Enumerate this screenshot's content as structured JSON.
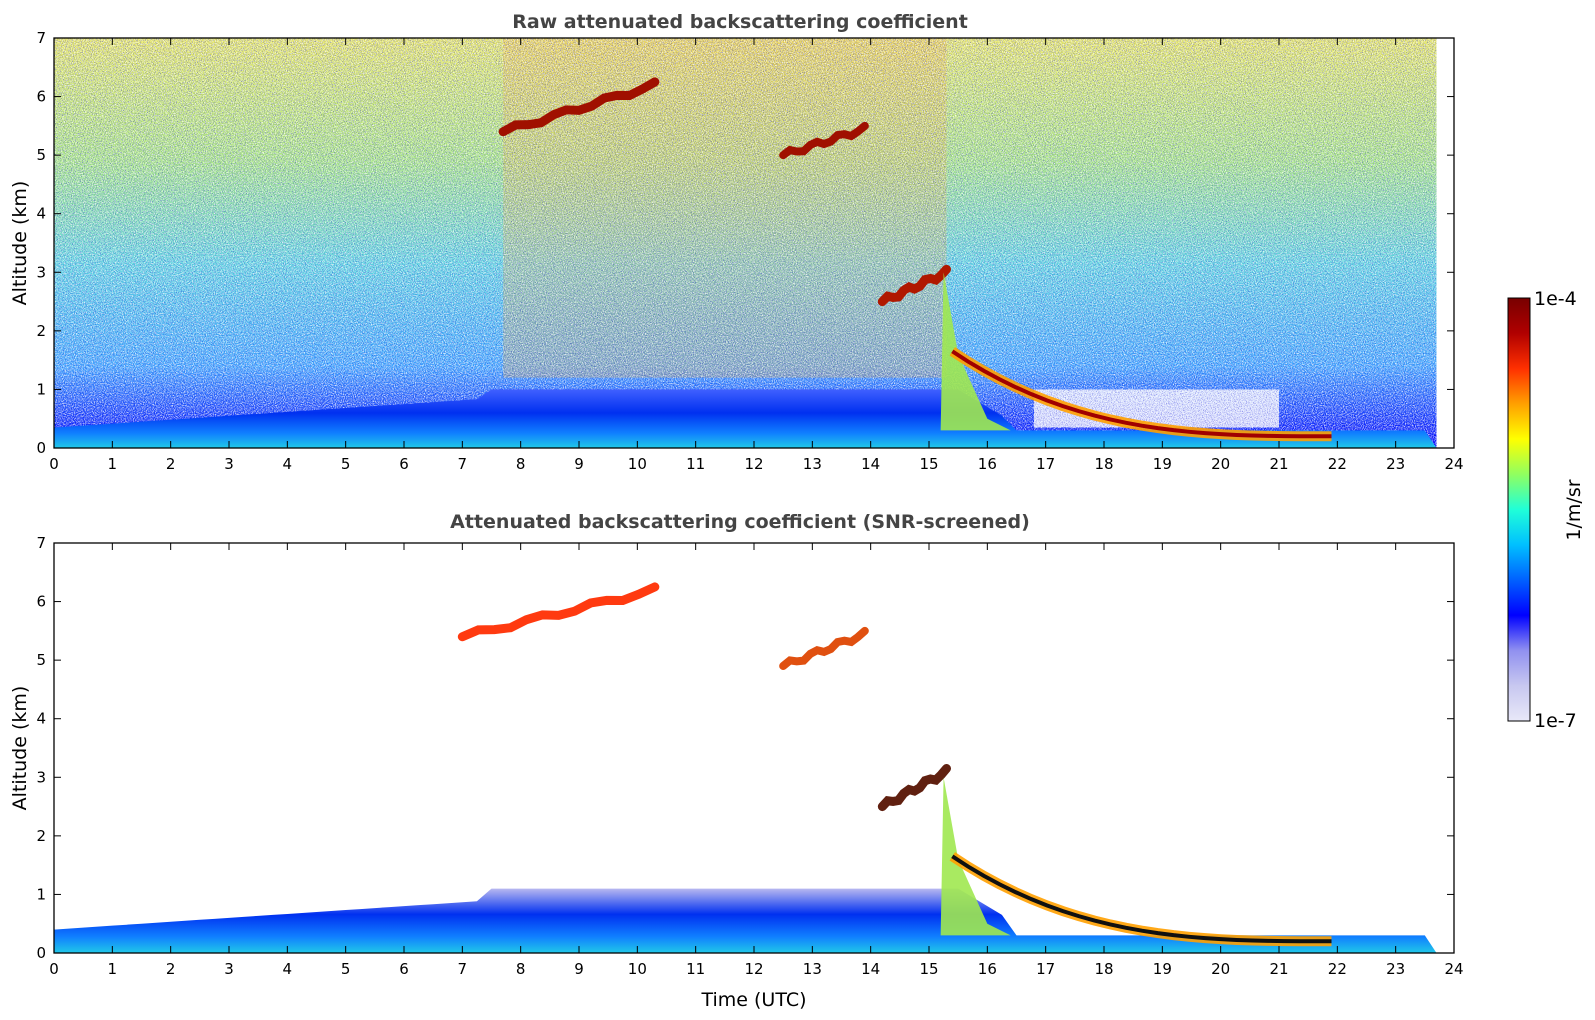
{
  "colorbar": {
    "max_label": "1e-4",
    "min_label": "1e-7",
    "unit_label": "1/m/sr",
    "colormap": [
      "#e8e8f8",
      "#c8c8f0",
      "#9090f0",
      "#0000ff",
      "#0060ff",
      "#00c0ff",
      "#20ffd8",
      "#90ff60",
      "#ffff00",
      "#ffa000",
      "#ff3000",
      "#b00000",
      "#780000"
    ]
  },
  "chart_data": [
    {
      "type": "heatmap",
      "title": "Raw attenuated backscattering coefficient",
      "xlabel": "",
      "ylabel": "Altitude (km)",
      "xlim": [
        0,
        24
      ],
      "ylim": [
        0,
        7
      ],
      "xticks": [
        "0",
        "1",
        "2",
        "3",
        "4",
        "5",
        "6",
        "7",
        "8",
        "9",
        "10",
        "11",
        "12",
        "13",
        "14",
        "15",
        "16",
        "17",
        "18",
        "19",
        "20",
        "21",
        "22",
        "23",
        "24"
      ],
      "yticks": [
        "0",
        "1",
        "2",
        "3",
        "4",
        "5",
        "6",
        "7"
      ],
      "colorscale": {
        "min": 1e-07,
        "max": 0.0001,
        "units": "1/m/sr"
      },
      "features": [
        {
          "name": "boundary layer aerosol",
          "x_start": 0,
          "x_end": 23.7,
          "top_km_start": 0.35,
          "top_km_end": 1.0
        },
        {
          "name": "cloud layer 1",
          "x_start": 7.7,
          "x_end": 10.3,
          "altitude_km_start": 5.4,
          "altitude_km_end": 6.2
        },
        {
          "name": "cloud layer 2",
          "x_start": 12.5,
          "x_end": 13.9,
          "altitude_km_start": 5.0,
          "altitude_km_end": 5.45
        },
        {
          "name": "mid-level cloud",
          "x_start": 14.2,
          "x_end": 15.3,
          "altitude_km_start": 2.5,
          "altitude_km_end": 3.0
        },
        {
          "name": "descending cloud base",
          "x_start": 15.4,
          "x_end": 21.9,
          "altitude_km_start": 1.6,
          "altitude_km_end": 0.15
        }
      ]
    },
    {
      "type": "heatmap",
      "title": "Attenuated backscattering coefficient (SNR-screened)",
      "xlabel": "Time (UTC)",
      "ylabel": "Altitude (km)",
      "xlim": [
        0,
        24
      ],
      "ylim": [
        0,
        7
      ],
      "xticks": [
        "0",
        "1",
        "2",
        "3",
        "4",
        "5",
        "6",
        "7",
        "8",
        "9",
        "10",
        "11",
        "12",
        "13",
        "14",
        "15",
        "16",
        "17",
        "18",
        "19",
        "20",
        "21",
        "22",
        "23",
        "24"
      ],
      "yticks": [
        "0",
        "1",
        "2",
        "3",
        "4",
        "5",
        "6",
        "7"
      ],
      "colorscale": {
        "min": 1e-07,
        "max": 0.0001,
        "units": "1/m/sr"
      },
      "features": [
        {
          "name": "boundary layer aerosol",
          "x_start": 0,
          "x_end": 23.7,
          "top_km_start": 0.4,
          "top_km_end": 1.1
        },
        {
          "name": "cloud layer 1",
          "x_start": 7.0,
          "x_end": 10.3,
          "altitude_km_start": 5.4,
          "altitude_km_end": 6.2
        },
        {
          "name": "cloud layer 2",
          "x_start": 12.5,
          "x_end": 13.9,
          "altitude_km_start": 4.9,
          "altitude_km_end": 5.45
        },
        {
          "name": "mid-level cloud",
          "x_start": 14.2,
          "x_end": 15.3,
          "altitude_km_start": 2.5,
          "altitude_km_end": 3.1
        },
        {
          "name": "descending cloud base",
          "x_start": 15.4,
          "x_end": 21.9,
          "altitude_km_start": 1.6,
          "altitude_km_end": 0.15
        }
      ]
    }
  ]
}
